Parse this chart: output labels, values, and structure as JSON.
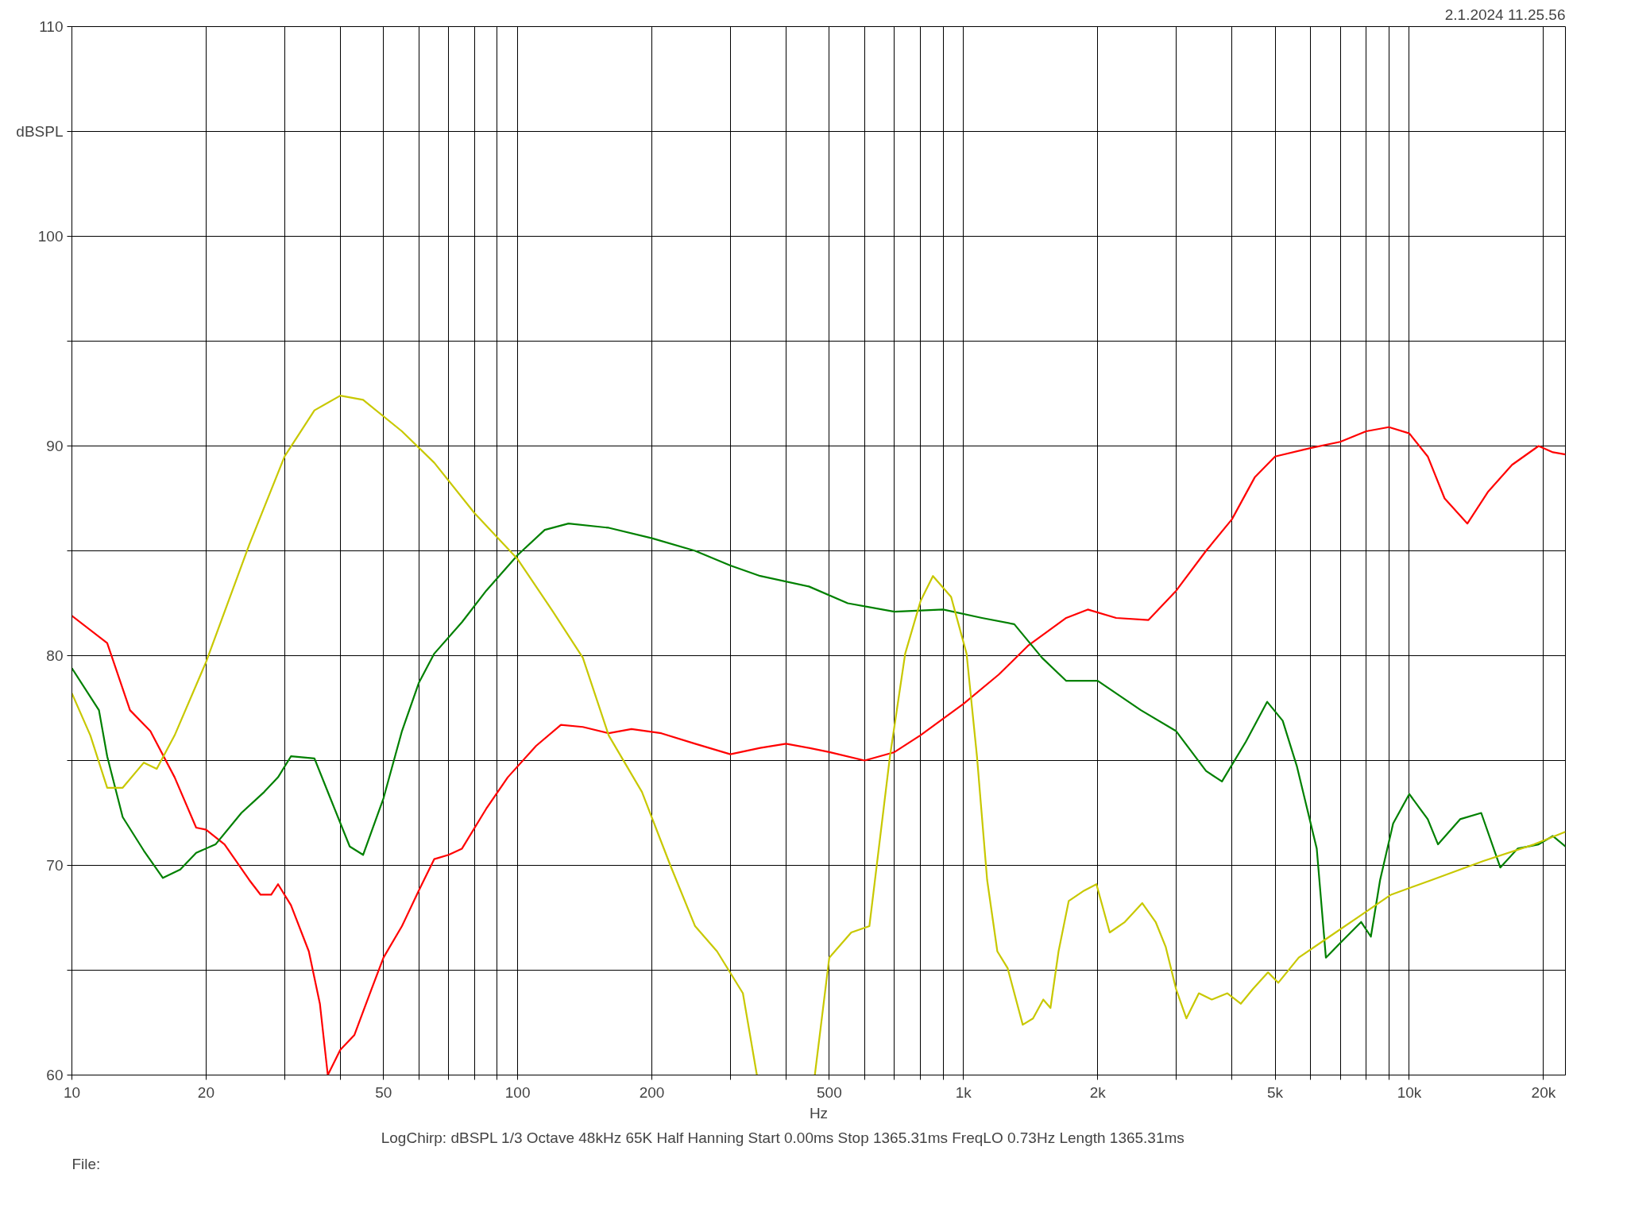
{
  "chart_data": {
    "type": "line",
    "log": "x",
    "grid": true,
    "xlabel": "Hz",
    "xlim": [
      10,
      22400
    ],
    "ylim": [
      60,
      110
    ],
    "xticks": [
      10,
      20,
      {
        "value": 30,
        "label": null
      },
      {
        "value": 40,
        "label": null
      },
      50,
      {
        "value": 60,
        "label": null
      },
      {
        "value": 70,
        "label": null
      },
      {
        "value": 80,
        "label": null
      },
      {
        "value": 90,
        "label": null
      },
      100,
      200,
      {
        "value": 300,
        "label": null
      },
      {
        "value": 400,
        "label": null
      },
      500,
      {
        "value": 600,
        "label": null
      },
      {
        "value": 700,
        "label": null
      },
      {
        "value": 800,
        "label": null
      },
      {
        "value": 900,
        "label": null
      },
      {
        "value": 1000,
        "label": "1k"
      },
      {
        "value": 2000,
        "label": "2k"
      },
      {
        "value": 3000,
        "label": null
      },
      {
        "value": 4000,
        "label": null
      },
      {
        "value": 5000,
        "label": "5k"
      },
      {
        "value": 6000,
        "label": null
      },
      {
        "value": 7000,
        "label": null
      },
      {
        "value": 8000,
        "label": null
      },
      {
        "value": 9000,
        "label": null
      },
      {
        "value": 10000,
        "label": "10k"
      },
      {
        "value": 20000,
        "label": "20k"
      }
    ],
    "yticks": [
      60,
      {
        "value": 65,
        "label": null
      },
      70,
      {
        "value": 75,
        "label": null
      },
      80,
      {
        "value": 85,
        "label": null
      },
      90,
      {
        "value": 95,
        "label": null
      },
      100,
      {
        "value": 105,
        "label": "dBSPL"
      },
      110
    ],
    "annotations": [
      "2.1.2024 11.25.56",
      "LogChirp:  dBSPL   1/3 Octave   48kHz   65K   Half Hanning   Start 0.00ms   Stop 1365.31ms   FreqLO 0.73Hz   Length 1365.31ms",
      "File:"
    ],
    "series": [
      {
        "color": "#ff0000",
        "x": [
          10,
          12,
          13.5,
          15,
          17,
          19,
          20,
          22,
          25,
          26.5,
          28,
          29,
          31,
          34,
          36,
          37.5,
          40,
          43,
          47,
          50,
          55,
          60,
          65,
          70,
          75,
          85,
          95,
          110,
          125,
          140,
          160,
          180,
          210,
          250,
          300,
          350,
          400,
          450,
          500,
          600,
          700,
          800,
          1000,
          1200,
          1400,
          1700,
          1900,
          2200,
          2600,
          3000,
          3500,
          4000,
          4500,
          5000,
          6000,
          7000,
          8000,
          9000,
          10000,
          11000,
          12000,
          13500,
          15000,
          17000,
          19500,
          21000,
          22400
        ],
        "values": [
          81.9,
          80.6,
          77.4,
          76.4,
          74.2,
          71.8,
          71.7,
          71.0,
          69.3,
          68.6,
          68.6,
          69.1,
          68.1,
          65.9,
          63.4,
          60,
          61.2,
          61.9,
          64.1,
          65.6,
          67.1,
          68.8,
          70.3,
          70.5,
          70.8,
          72.7,
          74.2,
          75.7,
          76.7,
          76.6,
          76.3,
          76.5,
          76.3,
          75.8,
          75.3,
          75.6,
          75.8,
          75.6,
          75.4,
          75.0,
          75.4,
          76.2,
          77.7,
          79.1,
          80.5,
          81.8,
          82.2,
          81.8,
          81.7,
          83.1,
          85.0,
          86.5,
          88.5,
          89.5,
          89.9,
          90.2,
          90.7,
          90.9,
          90.6,
          89.5,
          87.5,
          86.3,
          87.8,
          89.1,
          90.0,
          89.7,
          89.6
        ]
      },
      {
        "color": "#008000",
        "x": [
          10,
          11.5,
          12,
          13,
          14.5,
          16,
          17.5,
          19,
          21,
          24,
          27,
          29,
          31,
          35,
          38,
          42,
          45,
          50,
          55,
          60,
          65,
          75,
          85,
          100,
          115,
          130,
          160,
          200,
          250,
          300,
          350,
          450,
          550,
          700,
          900,
          1100,
          1300,
          1500,
          1700,
          2000,
          2500,
          3000,
          3500,
          3800,
          4300,
          4800,
          5200,
          5600,
          6200,
          6500,
          7000,
          7800,
          8200,
          8600,
          9200,
          10000,
          11000,
          11600,
          13000,
          14500,
          16000,
          17500,
          19500,
          21000,
          22400
        ],
        "values": [
          79.4,
          77.4,
          75.2,
          72.3,
          70.7,
          69.4,
          69.8,
          70.6,
          71.0,
          72.5,
          73.5,
          74.2,
          75.2,
          75.1,
          73.2,
          70.9,
          70.5,
          73.2,
          76.4,
          78.7,
          80.1,
          81.6,
          83.1,
          84.8,
          86.0,
          86.3,
          86.1,
          85.6,
          85.0,
          84.3,
          83.8,
          83.3,
          82.5,
          82.1,
          82.2,
          81.8,
          81.5,
          79.9,
          78.8,
          78.8,
          77.4,
          76.4,
          74.5,
          74.0,
          75.9,
          77.8,
          76.9,
          74.7,
          70.8,
          65.6,
          66.3,
          67.3,
          66.6,
          69.3,
          72.0,
          73.4,
          72.2,
          71.0,
          72.2,
          72.5,
          69.9,
          70.8,
          71.0,
          71.4,
          70.9
        ]
      },
      {
        "color": "#c8c800",
        "x": [
          10,
          11,
          12,
          13,
          14.5,
          15.5,
          17,
          20,
          25,
          30,
          35,
          40,
          45,
          55,
          65,
          80,
          100,
          120,
          140,
          160,
          190,
          220,
          250,
          280,
          320,
          344,
          400,
          464,
          500,
          560,
          615,
          684,
          740,
          801,
          854,
          938,
          1016,
          1072,
          1130,
          1191,
          1256,
          1358,
          1432,
          1510,
          1567,
          1634,
          1722,
          1866,
          1987,
          2128,
          2301,
          2518,
          2698,
          2843,
          2998,
          3162,
          3373,
          3606,
          3908,
          4188,
          4457,
          4819,
          5082,
          5649,
          6622,
          7762,
          9099,
          11220,
          14620,
          19050,
          22400
        ],
        "values": [
          78.2,
          76.2,
          73.7,
          73.7,
          74.9,
          74.6,
          76.2,
          79.7,
          85.3,
          89.5,
          91.7,
          92.4,
          92.2,
          90.7,
          89.2,
          86.8,
          84.6,
          82.1,
          79.9,
          76.2,
          73.5,
          70.0,
          67.1,
          65.9,
          63.9,
          60,
          null,
          60,
          65.6,
          66.8,
          67.1,
          75.2,
          80.1,
          82.6,
          83.8,
          82.8,
          80.1,
          75.2,
          69.3,
          65.9,
          65.1,
          62.4,
          62.7,
          63.6,
          63.2,
          65.9,
          68.3,
          68.8,
          69.1,
          66.8,
          67.3,
          68.2,
          67.3,
          66.1,
          64.1,
          62.7,
          63.9,
          63.6,
          63.9,
          63.4,
          64.1,
          64.9,
          64.4,
          65.6,
          66.6,
          67.6,
          68.6,
          69.3,
          70.2,
          71.0,
          71.6
        ]
      }
    ]
  }
}
